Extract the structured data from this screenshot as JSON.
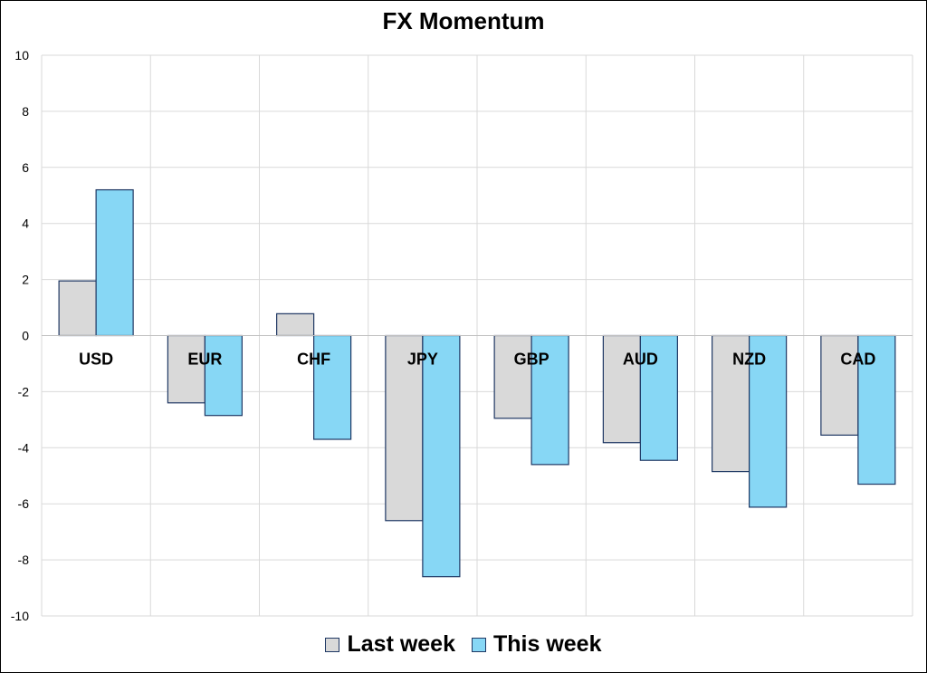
{
  "chart_data": {
    "type": "bar",
    "title": "FX Momentum",
    "categories": [
      "USD",
      "EUR",
      "CHF",
      "JPY",
      "GBP",
      "AUD",
      "NZD",
      "CAD"
    ],
    "series": [
      {
        "name": "Last week",
        "color": "#d9d9d9",
        "values": [
          1.95,
          -2.4,
          0.78,
          -6.6,
          -2.95,
          -3.82,
          -4.85,
          -3.55
        ]
      },
      {
        "name": "This week",
        "color": "#87d7f5",
        "values": [
          5.2,
          -2.85,
          -3.7,
          -8.6,
          -4.6,
          -4.45,
          -6.12,
          -5.3
        ]
      }
    ],
    "ylim": [
      -10,
      10
    ],
    "yticks": [
      10,
      8,
      6,
      4,
      2,
      0,
      -2,
      -4,
      -6,
      -8,
      -10
    ],
    "xlabel": "",
    "ylabel": "",
    "grid": true,
    "legend_position": "bottom",
    "bar_border_color": "#1f3864"
  }
}
